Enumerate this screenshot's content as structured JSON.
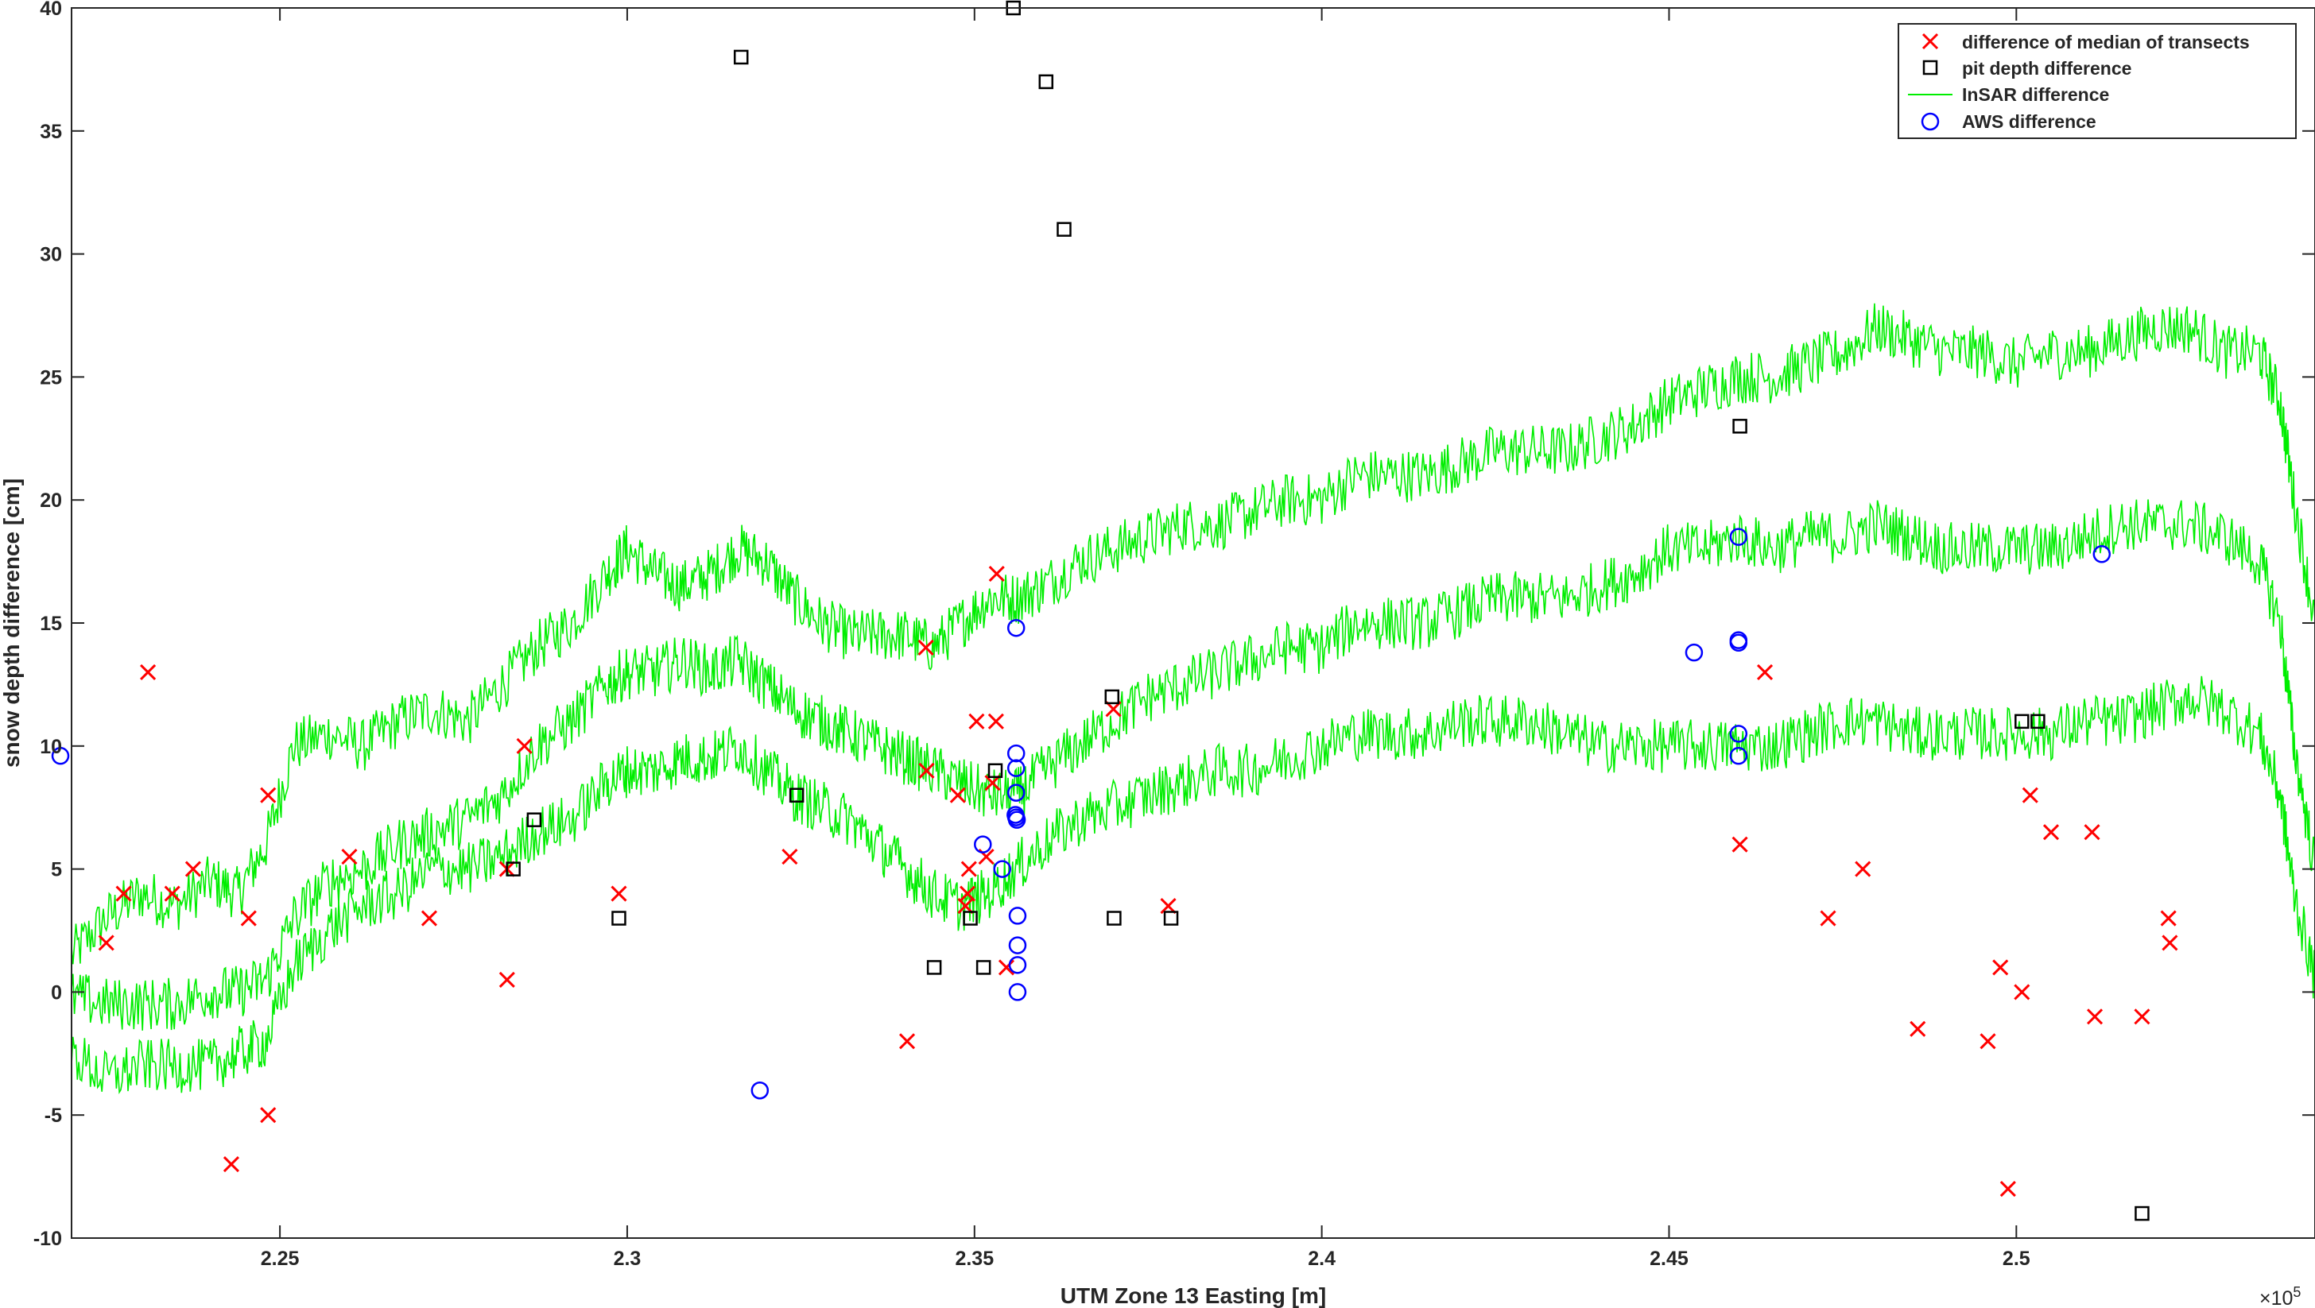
{
  "chart_data": {
    "type": "scatter",
    "xlabel": "UTM Zone 13 Easting [m]",
    "ylabel": "snow depth difference [cm]",
    "x_exponent_label": "×10",
    "x_exponent_power": "5",
    "xlim": [
      222000,
      254300
    ],
    "ylim": [
      -10,
      40
    ],
    "x_ticks": [
      225000,
      230000,
      235000,
      240000,
      245000,
      250000
    ],
    "x_tick_labels": [
      "2.25",
      "2.3",
      "2.35",
      "2.4",
      "2.45",
      "2.5"
    ],
    "y_ticks": [
      -10,
      -5,
      0,
      5,
      10,
      15,
      20,
      25,
      30,
      35,
      40
    ],
    "y_tick_labels": [
      "-10",
      "-5",
      "0",
      "5",
      "10",
      "15",
      "20",
      "25",
      "30",
      "35",
      "40"
    ],
    "legend_position": "top-right",
    "colors": {
      "transects": "#ff0000",
      "pits": "#000000",
      "insar": "#00ee00",
      "aws": "#0000ff",
      "axes": "#262626"
    },
    "series": [
      {
        "name": "difference of median of transects",
        "marker": "x",
        "points": [
          [
            222500,
            2
          ],
          [
            222750,
            4
          ],
          [
            223100,
            13
          ],
          [
            223450,
            4
          ],
          [
            223750,
            5
          ],
          [
            224300,
            -7
          ],
          [
            224550,
            3
          ],
          [
            224830,
            8
          ],
          [
            224830,
            -5
          ],
          [
            226000,
            5.5
          ],
          [
            227150,
            3
          ],
          [
            228270,
            0.5
          ],
          [
            228270,
            5
          ],
          [
            228520,
            10
          ],
          [
            229880,
            4
          ],
          [
            232340,
            5.5
          ],
          [
            234030,
            -2
          ],
          [
            234300,
            14
          ],
          [
            234310,
            9
          ],
          [
            234760,
            8
          ],
          [
            234870,
            3.5
          ],
          [
            234900,
            4
          ],
          [
            234920,
            5
          ],
          [
            235030,
            11
          ],
          [
            235170,
            5.5
          ],
          [
            235260,
            8.5
          ],
          [
            235310,
            11
          ],
          [
            235320,
            17
          ],
          [
            235460,
            1
          ],
          [
            237000,
            11.5
          ],
          [
            237790,
            3.5
          ],
          [
            246020,
            6
          ],
          [
            246380,
            13
          ],
          [
            247290,
            3
          ],
          [
            247790,
            5
          ],
          [
            248580,
            -1.5
          ],
          [
            249590,
            -2
          ],
          [
            249770,
            1
          ],
          [
            249880,
            -8
          ],
          [
            250080,
            0
          ],
          [
            250200,
            8
          ],
          [
            250500,
            6.5
          ],
          [
            251090,
            6.5
          ],
          [
            251130,
            -1
          ],
          [
            251810,
            -1
          ],
          [
            252190,
            3
          ],
          [
            252210,
            2
          ]
        ]
      },
      {
        "name": "pit depth difference",
        "marker": "square",
        "points": [
          [
            228360,
            5
          ],
          [
            228660,
            7
          ],
          [
            229880,
            3
          ],
          [
            231640,
            38
          ],
          [
            232440,
            8
          ],
          [
            234420,
            1
          ],
          [
            234940,
            3
          ],
          [
            235130,
            1
          ],
          [
            235300,
            9
          ],
          [
            235560,
            40
          ],
          [
            236030,
            37
          ],
          [
            236290,
            31
          ],
          [
            236980,
            12
          ],
          [
            237010,
            3
          ],
          [
            237830,
            3
          ],
          [
            246020,
            23
          ],
          [
            250080,
            11
          ],
          [
            250310,
            11
          ],
          [
            251810,
            -9
          ]
        ]
      },
      {
        "name": "InSAR difference",
        "marker": "line",
        "lines": [
          {
            "x": [
              222000,
              222500,
              223000,
              223500,
              224000,
              224400,
              224800,
              225200,
              225700,
              226200,
              226700,
              227200,
              227700,
              228200,
              228700,
              229200,
              229700,
              230000,
              230400,
              230800,
              231200,
              231600,
              232000,
              232400,
              232800,
              233200,
              233600,
              234000,
              234400,
              234800,
              235200,
              235600,
              236000,
              236500,
              237000,
              237500,
              238000,
              238500,
              239000,
              239500,
              240000,
              240500,
              241000,
              241500,
              242000,
              242500,
              243000,
              243500,
              244000,
              244500,
              245000,
              245500,
              246000,
              246500,
              247000,
              247500,
              248000,
              248500,
              249000,
              249500,
              250000,
              250500,
              251000,
              251500,
              252000,
              252500,
              253000,
              253500,
              253800,
              254000,
              254300
            ],
            "y": [
              1.5,
              3,
              4,
              3.5,
              4.5,
              4,
              6,
              10,
              10.5,
              10,
              11,
              11.5,
              11,
              12.5,
              14,
              15,
              17,
              18,
              17,
              16.5,
              17,
              18,
              17.5,
              16,
              15,
              14.5,
              14.5,
              14.5,
              14,
              15,
              16,
              16,
              16.5,
              17.5,
              18,
              18.5,
              19,
              19,
              19.5,
              20,
              20,
              21,
              21,
              21,
              21.5,
              22,
              22,
              22,
              22.5,
              23,
              24,
              24.5,
              25,
              25,
              25.5,
              26,
              27,
              26.5,
              26,
              26,
              25.5,
              26,
              26,
              26.5,
              27,
              27,
              26,
              26,
              24,
              20,
              15
            ]
          },
          {
            "x": [
              222000,
              222500,
              223000,
              223500,
              224000,
              224400,
              224800,
              225200,
              225700,
              226200,
              226700,
              227200,
              227700,
              228200,
              228700,
              229200,
              229700,
              230000,
              230400,
              230800,
              231200,
              231600,
              232000,
              232400,
              232800,
              233200,
              233600,
              234000,
              234400,
              234800,
              235200,
              235600,
              236000,
              236500,
              237000,
              237500,
              238000,
              238500,
              239000,
              239500,
              240000,
              240500,
              241000,
              241500,
              242000,
              242500,
              243000,
              243500,
              244000,
              244500,
              245000,
              245500,
              246000,
              246500,
              247000,
              247500,
              248000,
              248500,
              249000,
              249500,
              250000,
              250500,
              251000,
              251500,
              252000,
              252500,
              253000,
              253500,
              253800,
              254000,
              254300
            ],
            "y": [
              -0.2,
              -0.5,
              -0.5,
              -0.5,
              0,
              0,
              0.5,
              3,
              4.5,
              5,
              6,
              6.5,
              7,
              8,
              10,
              11,
              12.5,
              13,
              13,
              13.5,
              13,
              13.5,
              12.5,
              11.5,
              11,
              10.5,
              10,
              9.5,
              9,
              8.5,
              8,
              8,
              9,
              10,
              11,
              12,
              12.5,
              13,
              13.5,
              14,
              14,
              15,
              15,
              15,
              15.5,
              16,
              16,
              16,
              16.5,
              17,
              18,
              18,
              18.5,
              18,
              18.5,
              18.5,
              19,
              18.5,
              18,
              18,
              18,
              18,
              18.5,
              19,
              19,
              19,
              18.5,
              17.5,
              15,
              10,
              5
            ]
          },
          {
            "x": [
              222000,
              222500,
              223000,
              223500,
              224000,
              224400,
              224800,
              225200,
              225700,
              226200,
              226700,
              227200,
              227700,
              228200,
              228700,
              229200,
              229700,
              230000,
              230400,
              230800,
              231200,
              231600,
              232000,
              232400,
              232800,
              233200,
              233600,
              234000,
              234400,
              234800,
              235200,
              235600,
              236000,
              236500,
              237000,
              237500,
              238000,
              238500,
              239000,
              239500,
              240000,
              240500,
              241000,
              241500,
              242000,
              242500,
              243000,
              243500,
              244000,
              244500,
              245000,
              245500,
              246000,
              246500,
              247000,
              247500,
              248000,
              248500,
              249000,
              249500,
              250000,
              250500,
              251000,
              251500,
              252000,
              252500,
              253000,
              253500,
              253800,
              254000,
              254300
            ],
            "y": [
              -2.5,
              -3.5,
              -3,
              -3,
              -3,
              -2.5,
              -2,
              1,
              2.5,
              3.5,
              4,
              5,
              5,
              5.5,
              6.5,
              7,
              8.5,
              9,
              9,
              9.5,
              9.5,
              10,
              9,
              8,
              7.5,
              7,
              6,
              5,
              4,
              3.5,
              4,
              5,
              6,
              7,
              7.5,
              8,
              8.5,
              9,
              9,
              9.5,
              10,
              10.5,
              10.5,
              10.5,
              11,
              11,
              11,
              10.5,
              10,
              10,
              10,
              10,
              10,
              10,
              10.5,
              11,
              11,
              10.5,
              10.5,
              10.5,
              10.5,
              10.5,
              11,
              11,
              11.5,
              12,
              11.5,
              10.5,
              8,
              4,
              0.5
            ]
          }
        ]
      },
      {
        "name": "AWS difference",
        "marker": "circle",
        "points": [
          [
            221840,
            9.6
          ],
          [
            231910,
            -4
          ],
          [
            235120,
            6
          ],
          [
            235400,
            5
          ],
          [
            235590,
            7.2
          ],
          [
            235600,
            14.8
          ],
          [
            235600,
            9.7
          ],
          [
            235600,
            9.1
          ],
          [
            235600,
            8.1
          ],
          [
            235600,
            7.1
          ],
          [
            235610,
            7
          ],
          [
            235620,
            3.1
          ],
          [
            235620,
            1.9
          ],
          [
            235620,
            1.1
          ],
          [
            235620,
            0
          ],
          [
            245360,
            13.8
          ],
          [
            246000,
            18.5
          ],
          [
            246000,
            14.3
          ],
          [
            246000,
            14.2
          ],
          [
            246000,
            10.5
          ],
          [
            246000,
            9.6
          ],
          [
            251230,
            17.8
          ]
        ]
      }
    ]
  }
}
